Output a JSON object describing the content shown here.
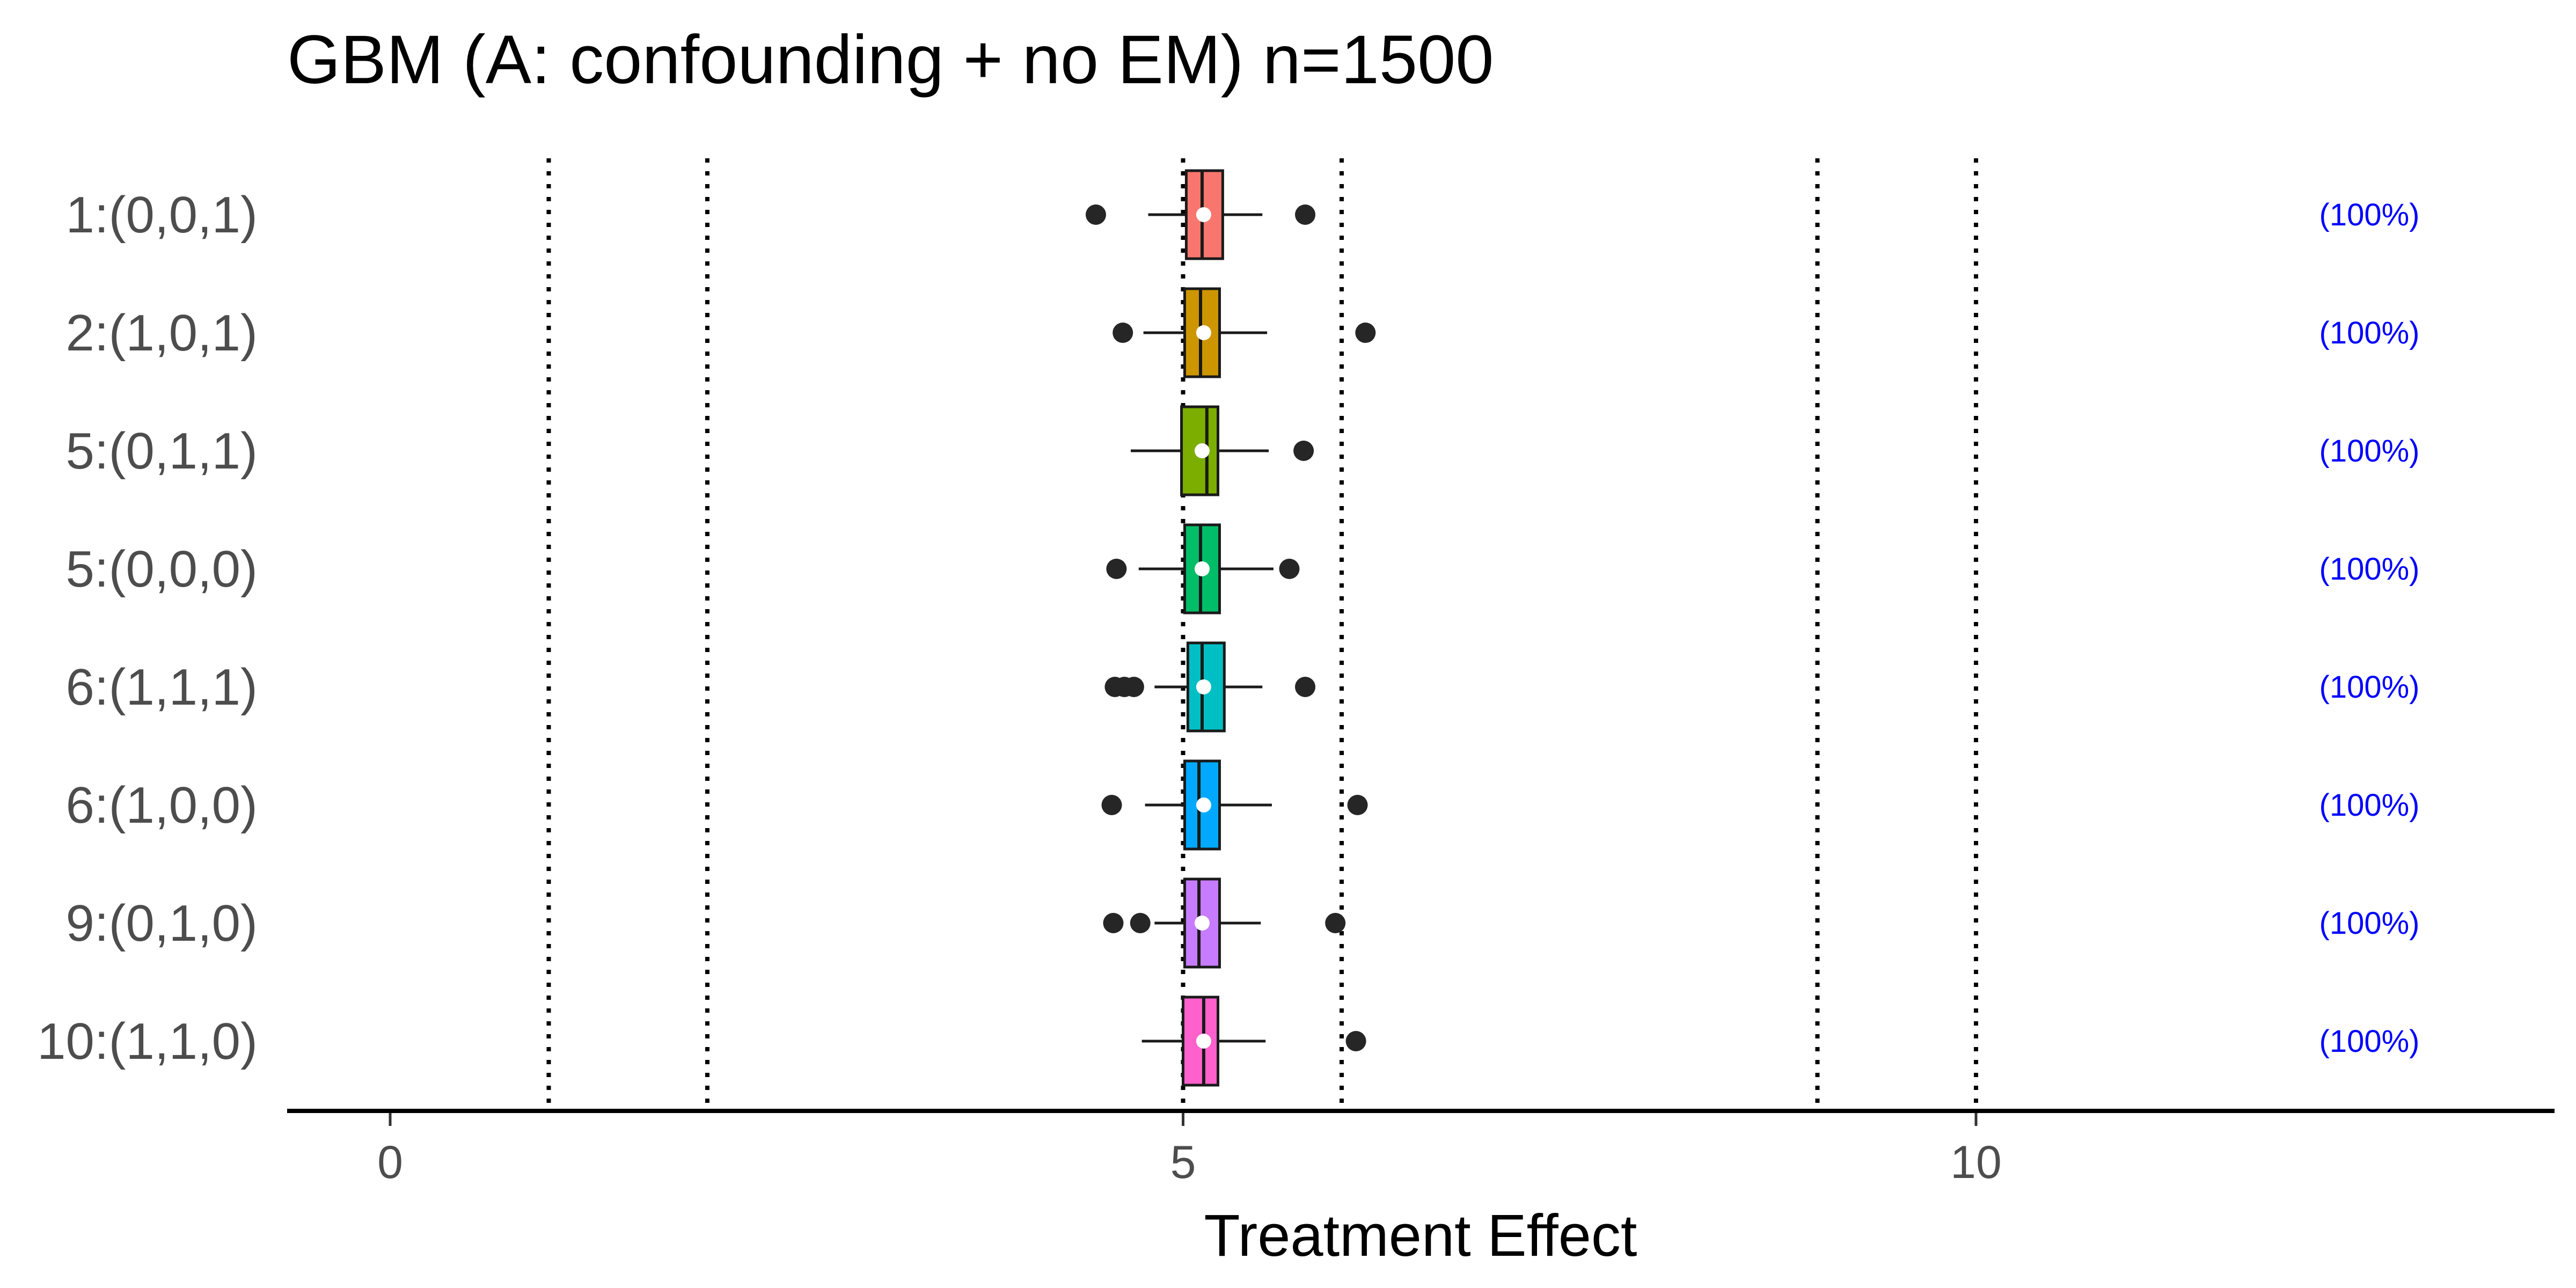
{
  "chart_data": {
    "type": "box",
    "title": "GBM (A: confounding + no EM) n=1500",
    "xlabel": "Treatment Effect",
    "ylabel": "",
    "xlim": [
      -0.65,
      13.65
    ],
    "xticks": [
      0,
      5,
      10
    ],
    "grid": false,
    "legend": "none",
    "reference_lines": [
      1,
      2,
      5,
      6,
      9,
      10
    ],
    "categories": [
      "1:(0,0,1)",
      "2:(1,0,1)",
      "5:(0,1,1)",
      "5:(0,0,0)",
      "6:(1,1,1)",
      "6:(1,0,0)",
      "9:(0,1,0)",
      "10:(1,1,0)"
    ],
    "annotations": [
      "(100%)",
      "(100%)",
      "(100%)",
      "(100%)",
      "(100%)",
      "(100%)",
      "(100%)",
      "(100%)"
    ],
    "colors": [
      "#F8766D",
      "#CD9600",
      "#7CAE00",
      "#00BE67",
      "#00BFC4",
      "#00A9FF",
      "#C77CFF",
      "#FF61CC"
    ],
    "boxes": [
      {
        "whisker_low": 4.78,
        "q1": 5.02,
        "median": 5.12,
        "q3": 5.25,
        "whisker_high": 5.5,
        "mean": 5.13,
        "outliers": [
          4.45,
          5.77
        ]
      },
      {
        "whisker_low": 4.75,
        "q1": 5.01,
        "median": 5.11,
        "q3": 5.23,
        "whisker_high": 5.53,
        "mean": 5.13,
        "outliers": [
          4.62,
          6.15
        ]
      },
      {
        "whisker_low": 4.67,
        "q1": 4.99,
        "median": 5.15,
        "q3": 5.22,
        "whisker_high": 5.54,
        "mean": 5.12,
        "outliers": [
          5.76
        ]
      },
      {
        "whisker_low": 4.72,
        "q1": 5.01,
        "median": 5.11,
        "q3": 5.23,
        "whisker_high": 5.57,
        "mean": 5.12,
        "outliers": [
          4.58,
          5.67
        ]
      },
      {
        "whisker_low": 4.82,
        "q1": 5.03,
        "median": 5.12,
        "q3": 5.26,
        "whisker_high": 5.5,
        "mean": 5.13,
        "outliers": [
          4.57,
          4.63,
          4.69,
          5.77
        ]
      },
      {
        "whisker_low": 4.76,
        "q1": 5.01,
        "median": 5.1,
        "q3": 5.23,
        "whisker_high": 5.56,
        "mean": 5.13,
        "outliers": [
          4.55,
          6.1
        ]
      },
      {
        "whisker_low": 4.82,
        "q1": 5.01,
        "median": 5.1,
        "q3": 5.23,
        "whisker_high": 5.49,
        "mean": 5.12,
        "outliers": [
          4.56,
          4.73,
          5.96
        ]
      },
      {
        "whisker_low": 4.74,
        "q1": 5.0,
        "median": 5.13,
        "q3": 5.22,
        "whisker_high": 5.52,
        "mean": 5.13,
        "outliers": [
          6.09
        ]
      }
    ]
  }
}
